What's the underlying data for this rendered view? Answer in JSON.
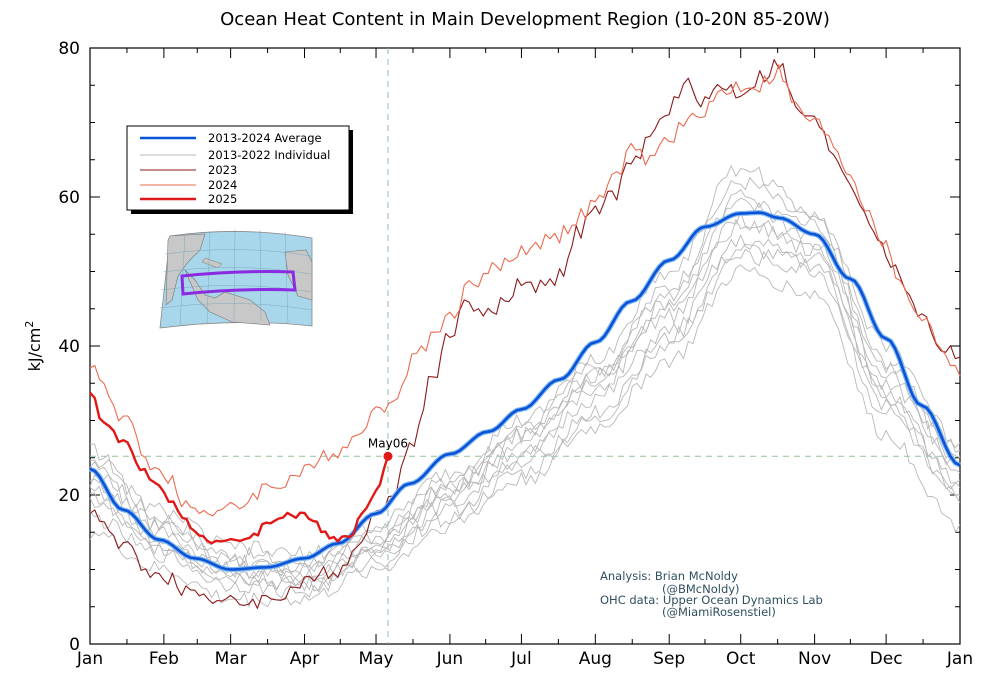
{
  "chart_data": {
    "type": "line",
    "title": "Ocean Heat Content in Main Development Region (10-20N 85-20W)",
    "xlabel": "",
    "ylabel": "kJ/cm",
    "ylabel_superscript": "2",
    "ylim": [
      0,
      80
    ],
    "yticks": [
      0,
      20,
      40,
      60,
      80
    ],
    "xlim": [
      1,
      366
    ],
    "month_labels": [
      "Jan",
      "Feb",
      "Mar",
      "Apr",
      "May",
      "Jun",
      "Jul",
      "Aug",
      "Sep",
      "Oct",
      "Nov",
      "Dec",
      "Jan"
    ],
    "month_days": [
      1,
      32,
      60,
      91,
      121,
      152,
      182,
      213,
      244,
      274,
      305,
      335,
      366
    ],
    "reference": {
      "day": 126,
      "value": 25.2,
      "label": "May06"
    },
    "legend": [
      "2013-2024 Average",
      "2013-2022 Individual",
      "2023",
      "2024",
      "2025"
    ],
    "series": [
      {
        "name": "2013-2024 Average",
        "color": "#0a52d6",
        "x": [
          1,
          15,
          30,
          45,
          60,
          75,
          91,
          105,
          121,
          135,
          152,
          168,
          182,
          198,
          213,
          228,
          244,
          259,
          274,
          282,
          290,
          305,
          320,
          335,
          350,
          366
        ],
        "values": [
          23.5,
          18,
          14,
          11.5,
          10,
          10.3,
          11.5,
          13.5,
          17.5,
          21.5,
          25.5,
          28.5,
          31.5,
          35.5,
          40.5,
          46,
          51.5,
          56,
          57.8,
          57.9,
          57.2,
          55,
          49,
          41,
          32,
          24
        ]
      },
      {
        "name": "2023",
        "color": "#8b1a1a",
        "x": [
          1,
          15,
          30,
          45,
          60,
          75,
          91,
          105,
          121,
          128,
          135,
          145,
          152,
          160,
          168,
          175,
          182,
          190,
          198,
          205,
          213,
          220,
          228,
          236,
          244,
          252,
          259,
          266,
          274,
          282,
          290,
          297,
          305,
          313,
          320,
          328,
          335,
          343,
          350,
          358,
          366
        ],
        "values": [
          18,
          13,
          9,
          7,
          5.5,
          6,
          8,
          10,
          17,
          21,
          26,
          36,
          42,
          46,
          44,
          46,
          49,
          48,
          49.5,
          55,
          58,
          60,
          64,
          68,
          72,
          75,
          73,
          75,
          74,
          76,
          78,
          72,
          70,
          66,
          62,
          57,
          52,
          48,
          44,
          40,
          38.5
        ]
      },
      {
        "name": "2024",
        "color": "#ec6a50",
        "x": [
          1,
          15,
          30,
          45,
          60,
          75,
          91,
          105,
          121,
          130,
          140,
          152,
          160,
          168,
          175,
          182,
          190,
          198,
          205,
          213,
          220,
          228,
          236,
          244,
          252,
          259,
          266,
          274,
          282,
          290,
          297,
          305,
          313,
          320,
          328,
          335,
          343,
          350,
          358,
          366
        ],
        "values": [
          37.5,
          30,
          23,
          18,
          18,
          21,
          23,
          26,
          31,
          34,
          40,
          44,
          48,
          50,
          51,
          53,
          54,
          55,
          57,
          59,
          62,
          66,
          65,
          68,
          70,
          72,
          74,
          75,
          75,
          77,
          72,
          70,
          67,
          63,
          58,
          53,
          47,
          44,
          40,
          36
        ]
      },
      {
        "name": "2025",
        "color": "#e01818",
        "x": [
          1,
          7,
          15,
          22,
          30,
          38,
          45,
          52,
          60,
          68,
          75,
          82,
          91,
          98,
          105,
          110,
          115,
          121,
          126
        ],
        "values": [
          34,
          29.5,
          27,
          24,
          21,
          18,
          15,
          14,
          13.5,
          14.5,
          16,
          17.5,
          17,
          15.5,
          14,
          15,
          17,
          21,
          25.2
        ]
      }
    ],
    "individual_series": [
      {
        "name": "2013-2022 Individual",
        "color": "#b8b8b8",
        "x": [
          1,
          30,
          60,
          91,
          121,
          152,
          182,
          213,
          244,
          274,
          305,
          335,
          366
        ],
        "values": [
          26,
          17,
          12,
          11,
          14,
          21,
          28,
          36,
          48,
          62,
          57,
          38,
          26
        ]
      },
      {
        "name": "2013-2022 Individual",
        "color": "#b8b8b8",
        "x": [
          1,
          30,
          60,
          91,
          121,
          152,
          182,
          213,
          244,
          274,
          305,
          335,
          366
        ],
        "values": [
          22,
          15,
          10,
          9,
          13,
          20,
          27,
          35,
          46,
          59,
          55,
          36,
          24
        ]
      },
      {
        "name": "2013-2022 Individual",
        "color": "#b8b8b8",
        "x": [
          1,
          30,
          60,
          91,
          121,
          152,
          182,
          213,
          244,
          274,
          305,
          335,
          366
        ],
        "values": [
          24,
          16,
          11,
          10,
          16,
          23,
          30,
          37,
          44,
          56,
          54,
          35,
          23
        ]
      },
      {
        "name": "2013-2022 Individual",
        "color": "#b8b8b8",
        "x": [
          1,
          30,
          60,
          91,
          121,
          152,
          182,
          213,
          244,
          274,
          305,
          335,
          366
        ],
        "values": [
          20,
          13,
          9,
          8,
          12,
          19,
          25,
          33,
          42,
          54,
          52,
          34,
          21
        ]
      },
      {
        "name": "2013-2022 Individual",
        "color": "#b8b8b8",
        "x": [
          1,
          30,
          60,
          91,
          121,
          152,
          182,
          213,
          244,
          274,
          305,
          335,
          366
        ],
        "values": [
          17,
          12,
          8,
          7,
          11,
          18,
          24,
          31,
          40,
          52,
          50,
          31,
          19
        ]
      },
      {
        "name": "2013-2022 Individual",
        "color": "#b8b8b8",
        "x": [
          1,
          30,
          60,
          91,
          121,
          152,
          182,
          213,
          244,
          274,
          305,
          335,
          366
        ],
        "values": [
          15,
          10,
          6,
          6,
          10,
          16,
          22,
          29,
          38,
          50,
          47,
          28,
          16
        ]
      },
      {
        "name": "2013-2022 Individual",
        "color": "#b8b8b8",
        "x": [
          1,
          30,
          60,
          91,
          121,
          152,
          182,
          213,
          244,
          274,
          305,
          335,
          366
        ],
        "values": [
          25,
          18,
          13,
          12,
          15,
          22,
          29,
          38,
          50,
          64,
          58,
          40,
          27
        ]
      },
      {
        "name": "2013-2022 Individual",
        "color": "#b8b8b8",
        "x": [
          1,
          30,
          60,
          91,
          121,
          152,
          182,
          213,
          244,
          274,
          305,
          335,
          366
        ],
        "values": [
          21,
          14,
          10,
          9,
          13,
          20,
          26,
          34,
          45,
          57,
          53,
          33,
          22
        ]
      },
      {
        "name": "2013-2022 Individual",
        "color": "#b8b8b8",
        "x": [
          1,
          30,
          60,
          91,
          121,
          152,
          182,
          213,
          244,
          274,
          305,
          335,
          366
        ],
        "values": [
          19,
          13,
          9,
          8,
          12,
          17,
          23,
          30,
          41,
          53,
          51,
          32,
          20
        ]
      },
      {
        "name": "2013-2022 Individual",
        "color": "#b8b8b8",
        "x": [
          1,
          30,
          60,
          91,
          121,
          152,
          182,
          213,
          244,
          274,
          305,
          335,
          366
        ],
        "values": [
          23,
          16,
          11,
          10,
          14,
          21,
          28,
          36,
          47,
          60,
          56,
          37,
          25
        ]
      }
    ],
    "annotations": {
      "line1": "Analysis: Brian McNoldy",
      "line2": "(@BMcNoldy)",
      "line3": "OHC data: Upper Ocean Dynamics Lab",
      "line4": "(@MiamiRosenstiel)"
    }
  }
}
